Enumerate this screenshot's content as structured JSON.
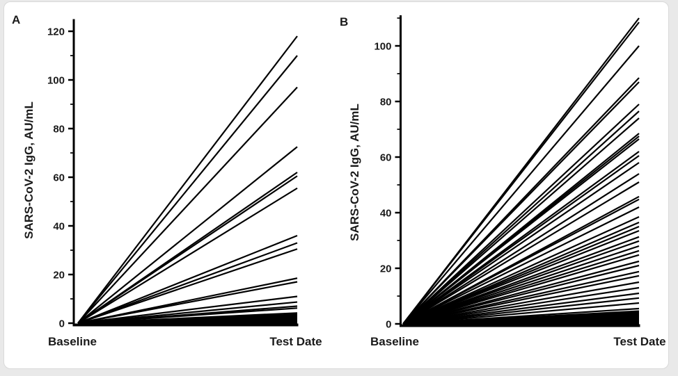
{
  "page": {
    "background": "#e9e9e9",
    "card_background": "#ffffff",
    "card_border": "#d9d9d9",
    "line_color": "#000000",
    "text_color": "#1a1a1a"
  },
  "chart_data": [
    {
      "type": "line",
      "panel_label": "A",
      "ylabel": "SARS-CoV-2 IgG, AU/mL",
      "x_categories": [
        "Baseline",
        "Test Date"
      ],
      "ylim": [
        0,
        125
      ],
      "y_major_ticks": [
        0,
        20,
        40,
        60,
        80,
        100,
        120
      ],
      "y_minor_ticks": [
        10,
        30,
        50,
        70,
        90,
        110
      ],
      "grid": "off",
      "legend": "none",
      "series_color": "#000000",
      "description": "Each line connects an individual subject's SARS-CoV-2 IgG value at Baseline (0 AU/mL) to the value on the Test Date.",
      "lines": [
        [
          0,
          118
        ],
        [
          0,
          110
        ],
        [
          0,
          97
        ],
        [
          0,
          72.5
        ],
        [
          0,
          62
        ],
        [
          0,
          60.5
        ],
        [
          0,
          55.5
        ],
        [
          0,
          36
        ],
        [
          0,
          33
        ],
        [
          0,
          30.5
        ],
        [
          0,
          18.5
        ],
        [
          0,
          17
        ],
        [
          0,
          11
        ],
        [
          0,
          8.7
        ],
        [
          0,
          7
        ],
        [
          0,
          6.2
        ],
        [
          0,
          4.2
        ],
        [
          0,
          3.6
        ],
        [
          0,
          3.1
        ],
        [
          0,
          2.7
        ],
        [
          0,
          2.3
        ],
        [
          0,
          2.0
        ],
        [
          0,
          1.7
        ],
        [
          0,
          1.5
        ],
        [
          0,
          1.2
        ],
        [
          0,
          1.0
        ],
        [
          0,
          0.8
        ],
        [
          0,
          0.6
        ],
        [
          0,
          0.5
        ],
        [
          0,
          0.35
        ],
        [
          0,
          0.25
        ],
        [
          0,
          0.15
        ]
      ]
    },
    {
      "type": "line",
      "panel_label": "B",
      "ylabel": "SARS-CoV-2 IgG, AU/mL",
      "x_categories": [
        "Baseline",
        "Test Date"
      ],
      "ylim": [
        0,
        111
      ],
      "y_major_ticks": [
        0,
        20,
        40,
        60,
        80,
        100
      ],
      "y_minor_ticks": [
        10,
        30,
        50,
        70,
        90,
        110
      ],
      "grid": "off",
      "legend": "none",
      "series_color": "#000000",
      "description": "Each line connects an individual subject's SARS-CoV-2 IgG value at Baseline (0 AU/mL) to the value on the Test Date.",
      "lines": [
        [
          0,
          110
        ],
        [
          0,
          108.5
        ],
        [
          0,
          100
        ],
        [
          0,
          88.5
        ],
        [
          0,
          87
        ],
        [
          0,
          79
        ],
        [
          0,
          76.5
        ],
        [
          0,
          74
        ],
        [
          0,
          68.5
        ],
        [
          0,
          67.5
        ],
        [
          0,
          66.5
        ],
        [
          0,
          62
        ],
        [
          0,
          60.5
        ],
        [
          0,
          58
        ],
        [
          0,
          54
        ],
        [
          0,
          51
        ],
        [
          0,
          45.8
        ],
        [
          0,
          44.8
        ],
        [
          0,
          42
        ],
        [
          0,
          38.5
        ],
        [
          0,
          36.5
        ],
        [
          0,
          35
        ],
        [
          0,
          33.5
        ],
        [
          0,
          31.3
        ],
        [
          0,
          29.8
        ],
        [
          0,
          28
        ],
        [
          0,
          26.3
        ],
        [
          0,
          24.8
        ],
        [
          0,
          22.5
        ],
        [
          0,
          21
        ],
        [
          0,
          18.8
        ],
        [
          0,
          17.3
        ],
        [
          0,
          15
        ],
        [
          0,
          13
        ],
        [
          0,
          11
        ],
        [
          0,
          9.3
        ],
        [
          0,
          7.5
        ],
        [
          0,
          5.5
        ],
        [
          0,
          4.6
        ],
        [
          0,
          4.1
        ],
        [
          0,
          3.7
        ],
        [
          0,
          3.3
        ],
        [
          0,
          2.9
        ],
        [
          0,
          2.6
        ],
        [
          0,
          2.3
        ],
        [
          0,
          2.0
        ],
        [
          0,
          1.8
        ],
        [
          0,
          1.55
        ],
        [
          0,
          1.35
        ],
        [
          0,
          1.15
        ],
        [
          0,
          1.0
        ],
        [
          0,
          0.85
        ],
        [
          0,
          0.7
        ],
        [
          0,
          0.55
        ],
        [
          0,
          0.45
        ],
        [
          0,
          0.35
        ],
        [
          0,
          0.25
        ],
        [
          0,
          0.18
        ],
        [
          0,
          0.1
        ]
      ]
    }
  ]
}
